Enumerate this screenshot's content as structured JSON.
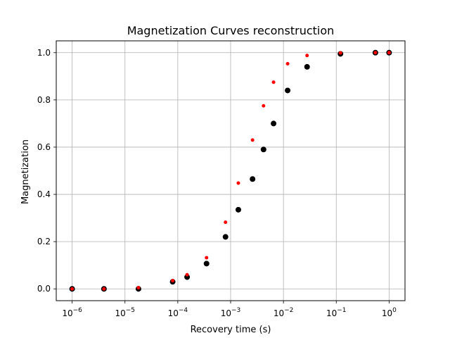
{
  "chart_data": {
    "type": "scatter",
    "title": "Magnetization Curves reconstruction",
    "xlabel": "Recovery time (s)",
    "ylabel": "Magnetization",
    "xscale": "log",
    "xlim": [
      5e-07,
      2
    ],
    "ylim": [
      -0.05,
      1.05
    ],
    "grid": true,
    "xticks": [
      {
        "base": "10",
        "exp": "−6",
        "value": 1e-06
      },
      {
        "base": "10",
        "exp": "−5",
        "value": 1e-05
      },
      {
        "base": "10",
        "exp": "−4",
        "value": 0.0001
      },
      {
        "base": "10",
        "exp": "−3",
        "value": 0.001
      },
      {
        "base": "10",
        "exp": "−2",
        "value": 0.01
      },
      {
        "base": "10",
        "exp": "−1",
        "value": 0.1
      },
      {
        "base": "10",
        "exp": "0",
        "value": 1
      }
    ],
    "yticks": [
      "0.0",
      "0.2",
      "0.4",
      "0.6",
      "0.8",
      "1.0"
    ],
    "ytick_values": [
      0,
      0.2,
      0.4,
      0.6,
      0.8,
      1.0
    ],
    "series": [
      {
        "color": "#000000",
        "marker_size": "large",
        "x": [
          1e-06,
          4e-06,
          1.8e-05,
          8e-05,
          0.00015,
          0.00035,
          0.0008,
          0.0014,
          0.0026,
          0.0042,
          0.0065,
          0.012,
          0.028,
          0.12,
          0.55,
          1.0
        ],
        "y": [
          0.0,
          0.0,
          0.0,
          0.03,
          0.05,
          0.107,
          0.22,
          0.335,
          0.465,
          0.59,
          0.7,
          0.84,
          0.94,
          0.995,
          1.0,
          1.0
        ]
      },
      {
        "color": "#ff0000",
        "marker_size": "small",
        "x": [
          1e-06,
          4e-06,
          1.8e-05,
          8e-05,
          0.00015,
          0.00035,
          0.0008,
          0.0014,
          0.0026,
          0.0042,
          0.0065,
          0.012,
          0.028,
          0.12,
          0.55,
          1.0
        ],
        "y": [
          0.0,
          0.0,
          0.005,
          0.035,
          0.06,
          0.132,
          0.282,
          0.448,
          0.63,
          0.775,
          0.875,
          0.953,
          0.988,
          0.999,
          1.0,
          1.0
        ]
      }
    ]
  }
}
